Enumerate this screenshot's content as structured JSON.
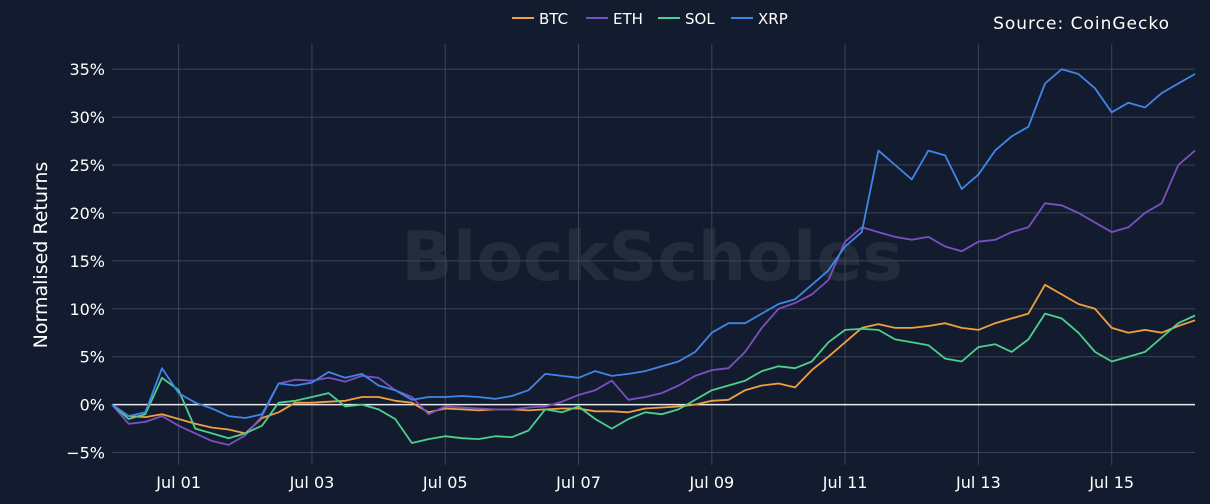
{
  "chart_data": {
    "type": "line",
    "title": "",
    "xlabel": "",
    "ylabel": "Normalised Returns",
    "source": "Source: CoinGecko",
    "watermark": "BlockScholes",
    "x_tick_labels": [
      "Jul 01",
      "Jul 03",
      "Jul 05",
      "Jul 07",
      "Jul 09",
      "Jul 11",
      "Jul 13",
      "Jul 15"
    ],
    "x_tick_positions": [
      1,
      3,
      5,
      7,
      9,
      11,
      13,
      15
    ],
    "xlim": [
      0,
      16.25
    ],
    "y_ticks": [
      -5,
      0,
      5,
      10,
      15,
      20,
      25,
      30,
      35
    ],
    "y_tick_labels": [
      "−5%",
      "0%",
      "5%",
      "10%",
      "15%",
      "20%",
      "25%",
      "30%",
      "35%"
    ],
    "ylim": [
      -6.3,
      37
    ],
    "grid": true,
    "legend_position": "top-center",
    "x": [
      0,
      0.25,
      0.5,
      0.75,
      1,
      1.25,
      1.5,
      1.75,
      2,
      2.25,
      2.5,
      2.75,
      3,
      3.25,
      3.5,
      3.75,
      4,
      4.25,
      4.5,
      4.75,
      5,
      5.25,
      5.5,
      5.75,
      6,
      6.25,
      6.5,
      6.75,
      7,
      7.25,
      7.5,
      7.75,
      8,
      8.25,
      8.5,
      8.75,
      9,
      9.25,
      9.5,
      9.75,
      10,
      10.25,
      10.5,
      10.75,
      11,
      11.25,
      11.5,
      11.75,
      12,
      12.25,
      12.5,
      12.75,
      13,
      13.25,
      13.5,
      13.75,
      14,
      14.25,
      14.5,
      14.75,
      15,
      15.25,
      15.5,
      15.75,
      16,
      16.25
    ],
    "series": [
      {
        "name": "BTC",
        "color": "#f0a040",
        "values": [
          0,
          -1.2,
          -1.3,
          -1.0,
          -1.5,
          -2.0,
          -2.4,
          -2.6,
          -3.0,
          -1.4,
          -0.8,
          0.2,
          0.2,
          0.3,
          0.4,
          0.8,
          0.8,
          0.4,
          0.2,
          -0.8,
          -0.4,
          -0.5,
          -0.6,
          -0.5,
          -0.5,
          -0.6,
          -0.5,
          -0.4,
          -0.4,
          -0.7,
          -0.7,
          -0.8,
          -0.4,
          -0.3,
          -0.2,
          0.0,
          0.4,
          0.5,
          1.5,
          2.0,
          2.2,
          1.8,
          3.6,
          5.0,
          6.5,
          8.0,
          8.4,
          8.0,
          8.0,
          8.2,
          8.5,
          8.0,
          7.8,
          8.5,
          9.0,
          9.5,
          12.5,
          11.5,
          10.5,
          10.0,
          8.0,
          7.5,
          7.8,
          7.5,
          8.2,
          8.8
        ]
      },
      {
        "name": "ETH",
        "color": "#7a50c0",
        "values": [
          0,
          -2.0,
          -1.8,
          -1.2,
          -2.2,
          -3.0,
          -3.8,
          -4.2,
          -3.2,
          -1.2,
          2.2,
          2.6,
          2.5,
          2.8,
          2.4,
          3.0,
          2.8,
          1.5,
          0.8,
          -1.0,
          -0.2,
          -0.3,
          -0.4,
          -0.5,
          -0.5,
          -0.3,
          -0.2,
          0.3,
          1.0,
          1.5,
          2.5,
          0.5,
          0.8,
          1.2,
          2.0,
          3.0,
          3.6,
          3.8,
          5.5,
          8.0,
          10.0,
          10.6,
          11.5,
          13.0,
          17.0,
          18.5,
          18.0,
          17.5,
          17.2,
          17.5,
          16.5,
          16.0,
          17.0,
          17.2,
          18.0,
          18.5,
          21.0,
          20.8,
          20.0,
          19.0,
          18.0,
          18.5,
          20.0,
          21.0,
          25.0,
          26.5
        ]
      },
      {
        "name": "SOL",
        "color": "#4ccf8f",
        "values": [
          0,
          -1.5,
          -1.0,
          2.8,
          1.5,
          -2.5,
          -3.0,
          -3.5,
          -3.0,
          -2.2,
          0.2,
          0.4,
          0.8,
          1.2,
          -0.2,
          0.0,
          -0.5,
          -1.5,
          -4.0,
          -3.6,
          -3.3,
          -3.5,
          -3.6,
          -3.3,
          -3.4,
          -2.7,
          -0.5,
          -0.8,
          -0.2,
          -1.5,
          -2.5,
          -1.5,
          -0.8,
          -1.0,
          -0.5,
          0.5,
          1.5,
          2.0,
          2.5,
          3.5,
          4.0,
          3.8,
          4.5,
          6.5,
          7.8,
          7.9,
          7.8,
          6.8,
          6.5,
          6.2,
          4.8,
          4.5,
          6.0,
          6.3,
          5.5,
          6.8,
          9.5,
          9.0,
          7.5,
          5.5,
          4.5,
          5.0,
          5.5,
          7.0,
          8.5,
          9.3
        ]
      },
      {
        "name": "XRP",
        "color": "#3f86e8",
        "values": [
          0,
          -1.2,
          -0.8,
          3.8,
          1.2,
          0.2,
          -0.4,
          -1.2,
          -1.4,
          -1.0,
          2.2,
          2.0,
          2.3,
          3.4,
          2.8,
          3.2,
          2.0,
          1.5,
          0.5,
          0.8,
          0.8,
          0.9,
          0.8,
          0.6,
          0.9,
          1.5,
          3.2,
          3.0,
          2.8,
          3.5,
          3.0,
          3.2,
          3.5,
          4.0,
          4.5,
          5.5,
          7.5,
          8.5,
          8.5,
          9.5,
          10.5,
          11.0,
          12.5,
          14.0,
          16.5,
          18.0,
          26.5,
          25.0,
          23.5,
          26.5,
          26.0,
          22.5,
          24.0,
          26.5,
          28.0,
          29.0,
          33.5,
          35.0,
          34.5,
          33.0,
          30.5,
          31.5,
          31.0,
          32.5,
          33.5,
          34.5
        ]
      }
    ]
  }
}
